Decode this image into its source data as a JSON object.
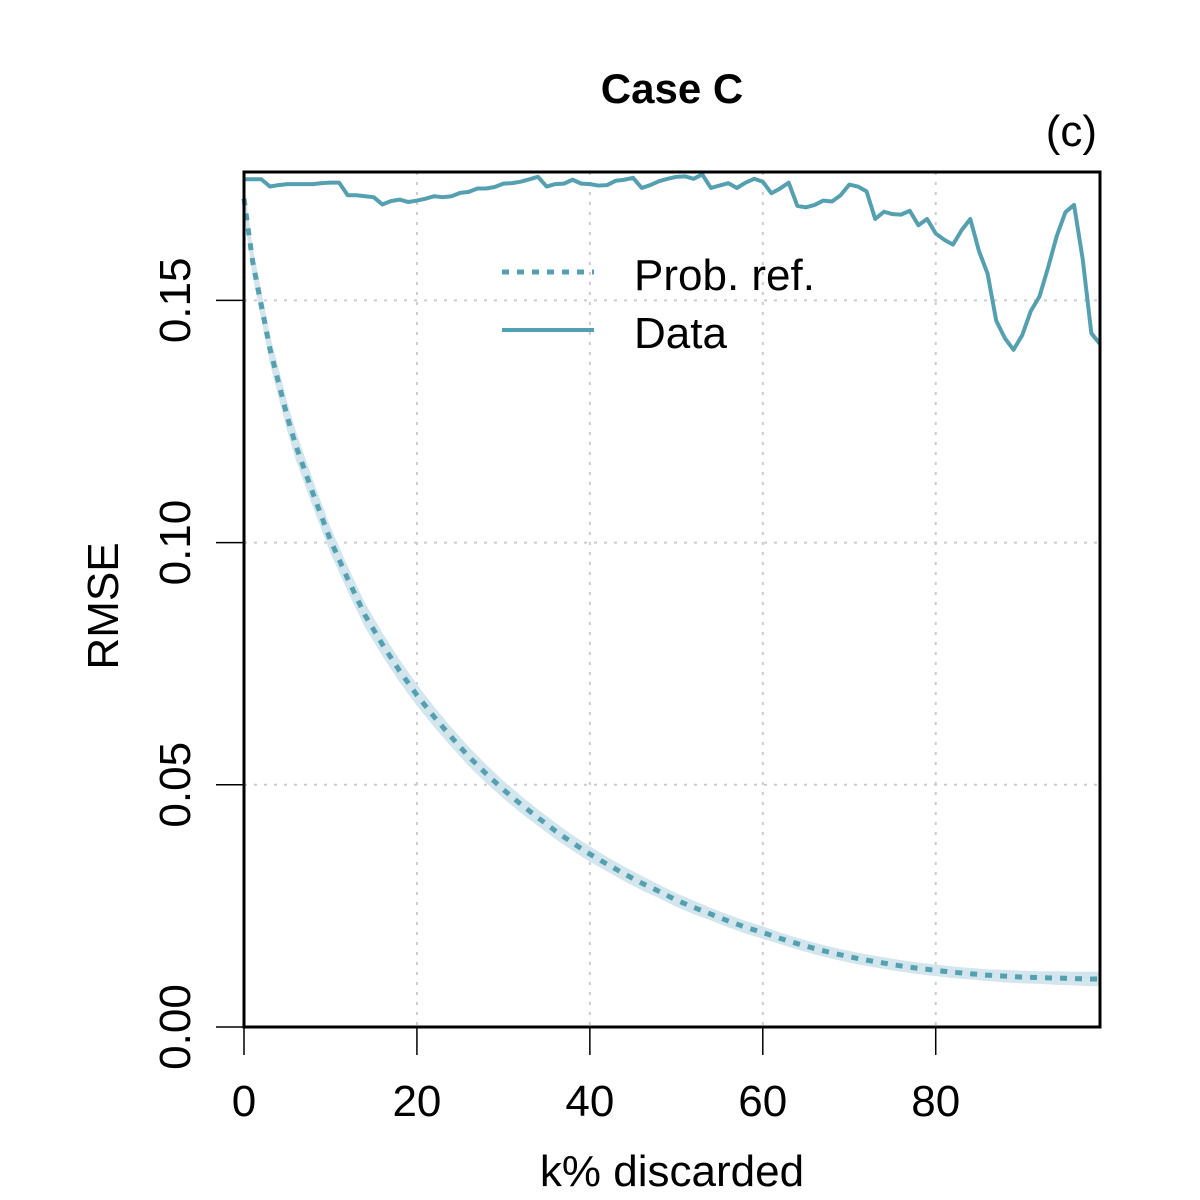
{
  "chart_data": {
    "type": "line",
    "title": "Case C",
    "panel_label": "(c)",
    "xlabel": "k% discarded",
    "ylabel": "RMSE",
    "xlim": [
      0,
      99
    ],
    "ylim": [
      0,
      0.1765
    ],
    "x_ticks": [
      0,
      20,
      40,
      60,
      80
    ],
    "x_tick_labels": [
      "0",
      "20",
      "40",
      "60",
      "80"
    ],
    "y_ticks": [
      0,
      0.05,
      0.1,
      0.15
    ],
    "y_tick_labels": [
      "0.00",
      "0.05",
      "0.10",
      "0.15"
    ],
    "grid": true,
    "legend_position": "top-center",
    "colors": {
      "series": "#55a0b0",
      "band": "#d3e6ed",
      "grid": "#cccccc"
    },
    "series": [
      {
        "name": "Prob. ref.",
        "style": "dotted",
        "x": [
          0,
          1,
          2,
          3,
          4,
          5,
          6,
          8,
          10,
          12,
          14,
          16,
          18,
          20,
          22,
          24,
          26,
          28,
          30,
          32,
          34,
          36,
          38,
          40,
          42,
          44,
          46,
          48,
          50,
          52,
          54,
          56,
          58,
          60,
          62,
          64,
          66,
          68,
          70,
          72,
          74,
          76,
          78,
          80,
          82,
          84,
          86,
          88,
          90,
          92,
          94,
          96,
          98,
          99
        ],
        "values": [
          0.171,
          0.158,
          0.149,
          0.14,
          0.133,
          0.126,
          0.12,
          0.11,
          0.1005,
          0.0925,
          0.085,
          0.079,
          0.0735,
          0.0685,
          0.064,
          0.0598,
          0.0558,
          0.0523,
          0.049,
          0.046,
          0.0432,
          0.0405,
          0.038,
          0.0357,
          0.0336,
          0.0316,
          0.0297,
          0.028,
          0.0262,
          0.0247,
          0.0233,
          0.0219,
          0.0206,
          0.0195,
          0.0183,
          0.0172,
          0.0162,
          0.0153,
          0.0145,
          0.0138,
          0.0132,
          0.0126,
          0.0121,
          0.0117,
          0.0113,
          0.011,
          0.0107,
          0.0105,
          0.0103,
          0.0102,
          0.0101,
          0.01,
          0.0099,
          0.0099
        ],
        "band_halfwidth": [
          0.003,
          0.003,
          0.003,
          0.003,
          0.003,
          0.003,
          0.003,
          0.0028,
          0.0027,
          0.0026,
          0.0025,
          0.0024,
          0.0023,
          0.0022,
          0.0021,
          0.002,
          0.002,
          0.0019,
          0.0018,
          0.0018,
          0.0017,
          0.0017,
          0.0016,
          0.0016,
          0.0015,
          0.0015,
          0.0015,
          0.0014,
          0.0014,
          0.0014,
          0.0013,
          0.0013,
          0.0013,
          0.0013,
          0.0012,
          0.0012,
          0.0012,
          0.0012,
          0.0012,
          0.0012,
          0.0012,
          0.0012,
          0.0012,
          0.0012,
          0.0012,
          0.0012,
          0.0012,
          0.0013,
          0.0013,
          0.0013,
          0.0014,
          0.0014,
          0.0015,
          0.0015
        ]
      },
      {
        "name": "Data",
        "style": "solid",
        "x": [
          0,
          1,
          2,
          3,
          4,
          5,
          6,
          7,
          8,
          9,
          10,
          11,
          12,
          13,
          14,
          15,
          16,
          17,
          18,
          19,
          20,
          21,
          22,
          23,
          24,
          25,
          26,
          27,
          28,
          29,
          30,
          31,
          32,
          33,
          34,
          35,
          36,
          37,
          38,
          39,
          40,
          41,
          42,
          43,
          44,
          45,
          46,
          47,
          48,
          49,
          50,
          51,
          52,
          53,
          54,
          55,
          56,
          57,
          58,
          59,
          60,
          61,
          62,
          63,
          64,
          65,
          66,
          67,
          68,
          69,
          70,
          71,
          72,
          73,
          74,
          75,
          76,
          77,
          78,
          79,
          80,
          81,
          82,
          83,
          84,
          85,
          86,
          87,
          88,
          89,
          90,
          91,
          92,
          93,
          94,
          95,
          96,
          97,
          98,
          99
        ],
        "values": [
          0.175,
          0.175,
          0.175,
          0.1735,
          0.1738,
          0.174,
          0.174,
          0.174,
          0.174,
          0.1742,
          0.1743,
          0.1743,
          0.1717,
          0.1717,
          0.1715,
          0.1713,
          0.1698,
          0.1705,
          0.1708,
          0.1703,
          0.1706,
          0.171,
          0.1715,
          0.1713,
          0.1715,
          0.1722,
          0.1724,
          0.1731,
          0.1731,
          0.1734,
          0.1741,
          0.1742,
          0.1745,
          0.175,
          0.1755,
          0.1735,
          0.174,
          0.1741,
          0.1749,
          0.1741,
          0.174,
          0.1737,
          0.1738,
          0.1747,
          0.1749,
          0.1753,
          0.1732,
          0.1738,
          0.1746,
          0.1751,
          0.1755,
          0.1756,
          0.1751,
          0.176,
          0.1732,
          0.1737,
          0.1742,
          0.1732,
          0.1743,
          0.1751,
          0.1745,
          0.1721,
          0.1731,
          0.1743,
          0.1695,
          0.1692,
          0.1697,
          0.1706,
          0.1704,
          0.1717,
          0.1739,
          0.1735,
          0.1725,
          0.1668,
          0.1683,
          0.1678,
          0.1677,
          0.1685,
          0.1655,
          0.1668,
          0.1638,
          0.1625,
          0.1615,
          0.1645,
          0.1668,
          0.1602,
          0.1555,
          0.1458,
          0.1422,
          0.1398,
          0.1428,
          0.1478,
          0.1508,
          0.1568,
          0.1633,
          0.1682,
          0.1697,
          0.1585,
          0.1432,
          0.141
        ]
      }
    ]
  }
}
